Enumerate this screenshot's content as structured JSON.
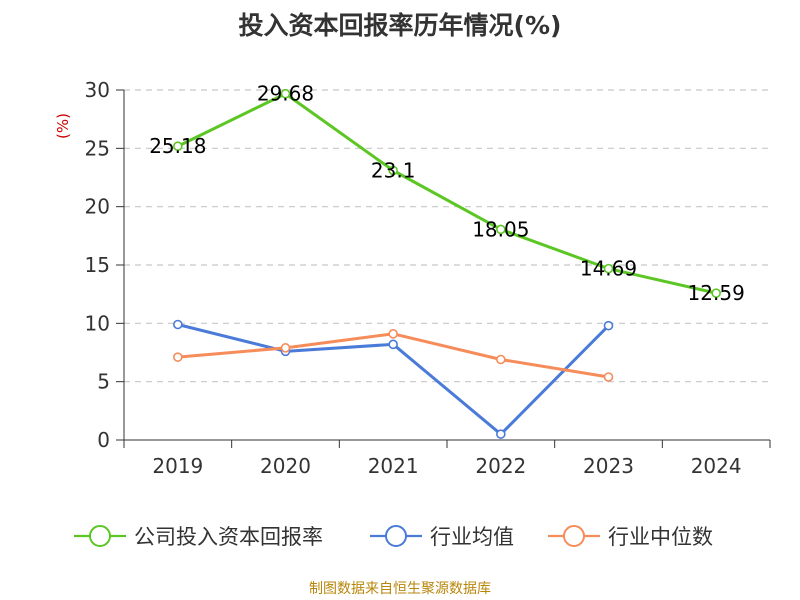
{
  "chart_data": {
    "type": "line",
    "title": "投入资本回报率历年情况(%)",
    "unit": "(%)",
    "xlabel": "",
    "ylabel": "",
    "categories": [
      "2019",
      "2020",
      "2021",
      "2022",
      "2023",
      "2024"
    ],
    "ylim": [
      0,
      30
    ],
    "yticks": [
      0,
      5,
      10,
      15,
      20,
      25,
      30
    ],
    "grid": true,
    "legend_position": "bottom",
    "series": [
      {
        "name": "公司投入资本回报率",
        "color": "#5cc724",
        "values": [
          25.18,
          29.68,
          23.1,
          18.05,
          14.69,
          12.59
        ],
        "labels": [
          "25.18",
          "29.68",
          "23.1",
          "18.05",
          "14.69",
          "12.59"
        ]
      },
      {
        "name": "行业均值",
        "color": "#4a7bd9",
        "values": [
          9.9,
          7.6,
          8.2,
          0.5,
          9.8,
          null
        ]
      },
      {
        "name": "行业中位数",
        "color": "#f58c5a",
        "values": [
          7.1,
          7.9,
          9.1,
          6.9,
          5.4,
          null
        ]
      }
    ],
    "source": "制图数据来自恒生聚源数据库"
  }
}
